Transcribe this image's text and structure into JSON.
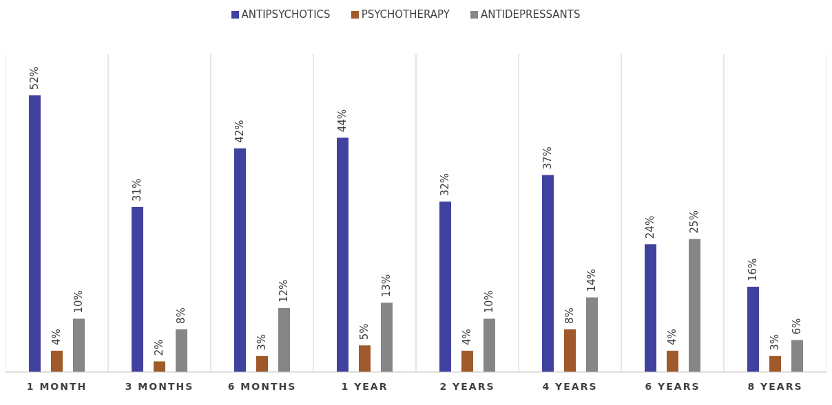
{
  "chart_data": {
    "type": "bar",
    "categories": [
      "1 MONTH",
      "3 MONTHS",
      "6 MONTHS",
      "1 YEAR",
      "2 YEARS",
      "4 YEARS",
      "6 YEARS",
      "8 YEARS"
    ],
    "series": [
      {
        "name": "ANTIPSYCHOTICS",
        "color": "#4141a0",
        "values": [
          52,
          31,
          42,
          44,
          32,
          37,
          24,
          16
        ],
        "value_labels": [
          "52%",
          "31%",
          "42%",
          "44%",
          "32%",
          "37%",
          "24%",
          "16%"
        ]
      },
      {
        "name": "PSYCHOTHERAPY",
        "color": "#a0592b",
        "values": [
          4,
          2,
          3,
          5,
          4,
          8,
          4,
          3
        ],
        "value_labels": [
          "4%",
          "2%",
          "3%",
          "5%",
          "4%",
          "8%",
          "4%",
          "3%"
        ]
      },
      {
        "name": "ANTIDEPRESSANTS",
        "color": "#868686",
        "values": [
          10,
          8,
          12,
          13,
          10,
          14,
          25,
          6
        ],
        "value_labels": [
          "10%",
          "8%",
          "12%",
          "13%",
          "10%",
          "14%",
          "25%",
          "6%"
        ]
      }
    ],
    "grid": "x",
    "legend": "top"
  }
}
